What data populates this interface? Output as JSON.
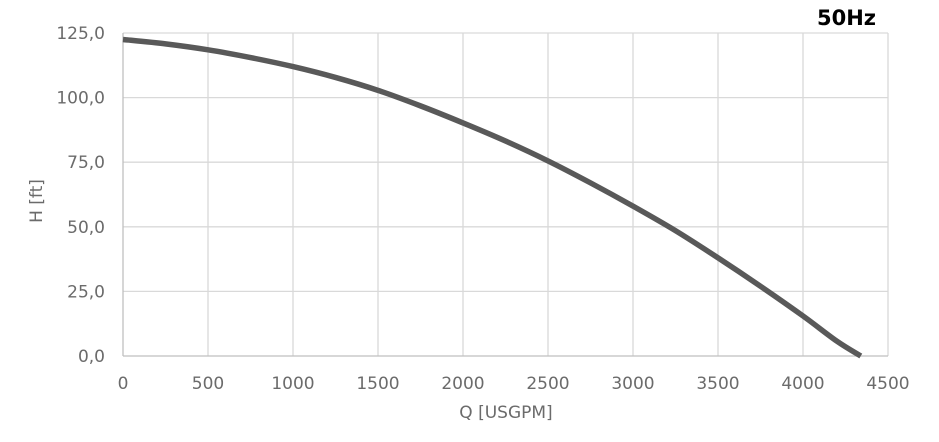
{
  "chart_data": {
    "type": "line",
    "annotation": "50Hz",
    "xlabel": "Q [USGPM]",
    "ylabel": "H [ft]",
    "xlim": [
      0,
      4500
    ],
    "ylim": [
      0,
      125
    ],
    "x_ticks": [
      0,
      500,
      1000,
      1500,
      2000,
      2500,
      3000,
      3500,
      4000,
      4500
    ],
    "x_tick_labels": [
      "0",
      "500",
      "1000",
      "1500",
      "2000",
      "2500",
      "3000",
      "3500",
      "4000",
      "4500"
    ],
    "y_ticks": [
      0,
      25,
      50,
      75,
      100,
      125
    ],
    "y_tick_labels": [
      "0,0",
      "25,0",
      "50,0",
      "75,0",
      "100,0",
      "125,0"
    ],
    "grid": true,
    "series": [
      {
        "color": "#595959",
        "x": [
          0,
          250,
          500,
          750,
          1000,
          1250,
          1500,
          1750,
          2000,
          2250,
          2500,
          2750,
          3000,
          3250,
          3500,
          3750,
          4000,
          4200,
          4340
        ],
        "y": [
          122.5,
          120.8,
          118.5,
          115.5,
          112.0,
          107.8,
          102.8,
          96.8,
          90.2,
          83.2,
          75.5,
          67.0,
          58.0,
          48.5,
          38.0,
          27.0,
          15.5,
          5.7,
          0.0
        ]
      }
    ]
  }
}
